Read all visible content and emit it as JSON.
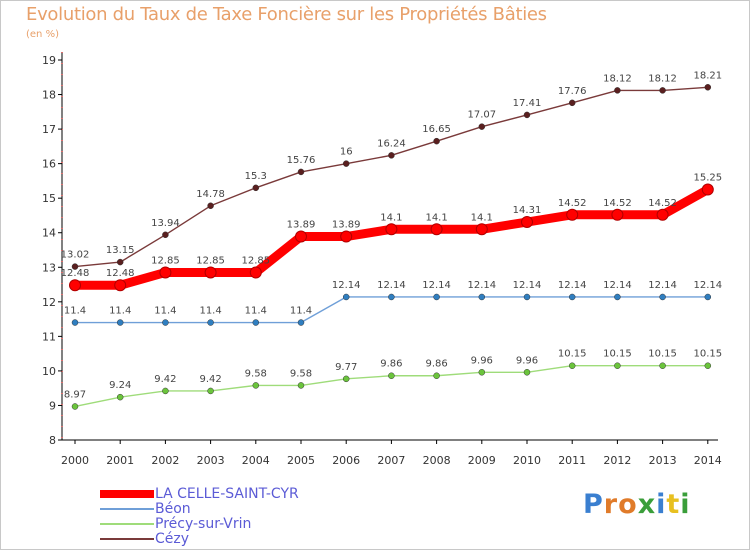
{
  "logo": {
    "text": "Proxiti",
    "letter_colors": [
      "#3a7fd0",
      "#e07b2a",
      "#e07b2a",
      "#3a9e3a",
      "#3a7fd0",
      "#e8c020",
      "#3a9e3a"
    ]
  },
  "chart_data": {
    "type": "line",
    "title": "Evolution du Taux de Taxe Foncière sur les Propriétés Bâties",
    "ylabel": "(en %)",
    "xlabel": "",
    "x": [
      "2000",
      "2001",
      "2002",
      "2003",
      "2004",
      "2005",
      "2006",
      "2007",
      "2008",
      "2009",
      "2010",
      "2011",
      "2012",
      "2013",
      "2014"
    ],
    "ylim": [
      8,
      19
    ],
    "yticks": [
      8,
      9,
      10,
      11,
      12,
      13,
      14,
      15,
      16,
      17,
      18,
      19
    ],
    "grid": false,
    "legend_position": "bottom-left",
    "series": [
      {
        "name": "LA CELLE-SAINT-CYR",
        "color": "#ff0000",
        "emphasis": "thick",
        "values": [
          12.48,
          12.48,
          12.85,
          12.85,
          12.85,
          13.89,
          13.89,
          14.1,
          14.1,
          14.1,
          14.31,
          14.52,
          14.52,
          14.52,
          15.25
        ],
        "labels": [
          "12.48",
          "12.48",
          "12.85",
          "12.85",
          "12.85",
          "13.89",
          "13.89",
          "14.1",
          "14.1",
          "14.1",
          "14.31",
          "14.52",
          "14.52",
          "14.52",
          "15.25"
        ]
      },
      {
        "name": "Béon",
        "color": "#6f9fd8",
        "marker_color": "#2f7ec0",
        "values": [
          11.4,
          11.4,
          11.4,
          11.4,
          11.4,
          11.4,
          12.14,
          12.14,
          12.14,
          12.14,
          12.14,
          12.14,
          12.14,
          12.14,
          12.14
        ],
        "labels": [
          "11.4",
          "11.4",
          "11.4",
          "11.4",
          "11.4",
          "11.4",
          "12.14",
          "12.14",
          "12.14",
          "12.14",
          "12.14",
          "12.14",
          "12.14",
          "12.14",
          "12.14"
        ]
      },
      {
        "name": "Précy-sur-Vrin",
        "color": "#9fdc7a",
        "marker_color": "#6bc43c",
        "values": [
          8.97,
          9.24,
          9.42,
          9.42,
          9.58,
          9.58,
          9.77,
          9.86,
          9.86,
          9.96,
          9.96,
          10.15,
          10.15,
          10.15,
          10.15
        ],
        "labels": [
          "8.97",
          "9.24",
          "9.42",
          "9.42",
          "9.58",
          "9.58",
          "9.77",
          "9.86",
          "9.86",
          "9.96",
          "9.96",
          "10.15",
          "10.15",
          "10.15",
          "10.15"
        ]
      },
      {
        "name": "Cézy",
        "color": "#7a3a3a",
        "marker_color": "#5a1f1f",
        "values": [
          13.02,
          13.15,
          13.94,
          14.78,
          15.3,
          15.76,
          16.0,
          16.24,
          16.65,
          17.07,
          17.41,
          17.76,
          18.12,
          18.12,
          18.21
        ],
        "labels": [
          "13.02",
          "13.15",
          "13.94",
          "14.78",
          "15.3",
          "15.76",
          "16",
          "16.24",
          "16.65",
          "17.07",
          "17.41",
          "17.76",
          "18.12",
          "18.12",
          "18.21"
        ]
      }
    ]
  }
}
